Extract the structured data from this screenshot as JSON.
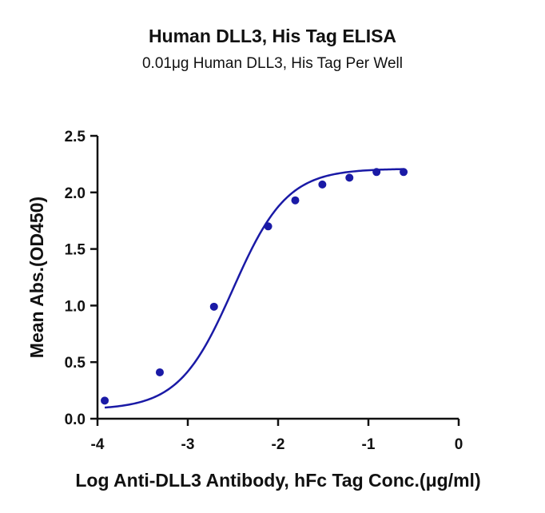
{
  "chart_data": {
    "type": "scatter",
    "title": "Human DLL3, His Tag ELISA",
    "subtitle": "0.01μg Human DLL3, His Tag Per Well",
    "xlabel": "Log Anti-DLL3 Antibody, hFc Tag Conc.(μg/ml)",
    "ylabel": "Mean Abs.(OD450)",
    "xlim": [
      -4,
      0
    ],
    "ylim": [
      0,
      2.5
    ],
    "xticks": [
      -4,
      -3,
      -2,
      -1,
      0
    ],
    "yticks": [
      0.0,
      0.5,
      1.0,
      1.5,
      2.0,
      2.5
    ],
    "xtick_labels": [
      "-4",
      "-3",
      "-2",
      "-1",
      "0"
    ],
    "ytick_labels": [
      "0.0",
      "0.5",
      "1.0",
      "1.5",
      "2.0",
      "2.5"
    ],
    "grid": false,
    "series": [
      {
        "color": "#1a1aa6",
        "x": [
          -3.92,
          -3.31,
          -2.71,
          -2.11,
          -1.81,
          -1.51,
          -1.21,
          -0.91,
          -0.61
        ],
        "y": [
          0.16,
          0.41,
          0.99,
          1.7,
          1.93,
          2.07,
          2.13,
          2.18,
          2.18
        ]
      }
    ],
    "fit": {
      "type": "4PL",
      "bottom": 0.08,
      "top": 2.21,
      "ec50_log": -2.5,
      "hill": 1.45
    }
  }
}
